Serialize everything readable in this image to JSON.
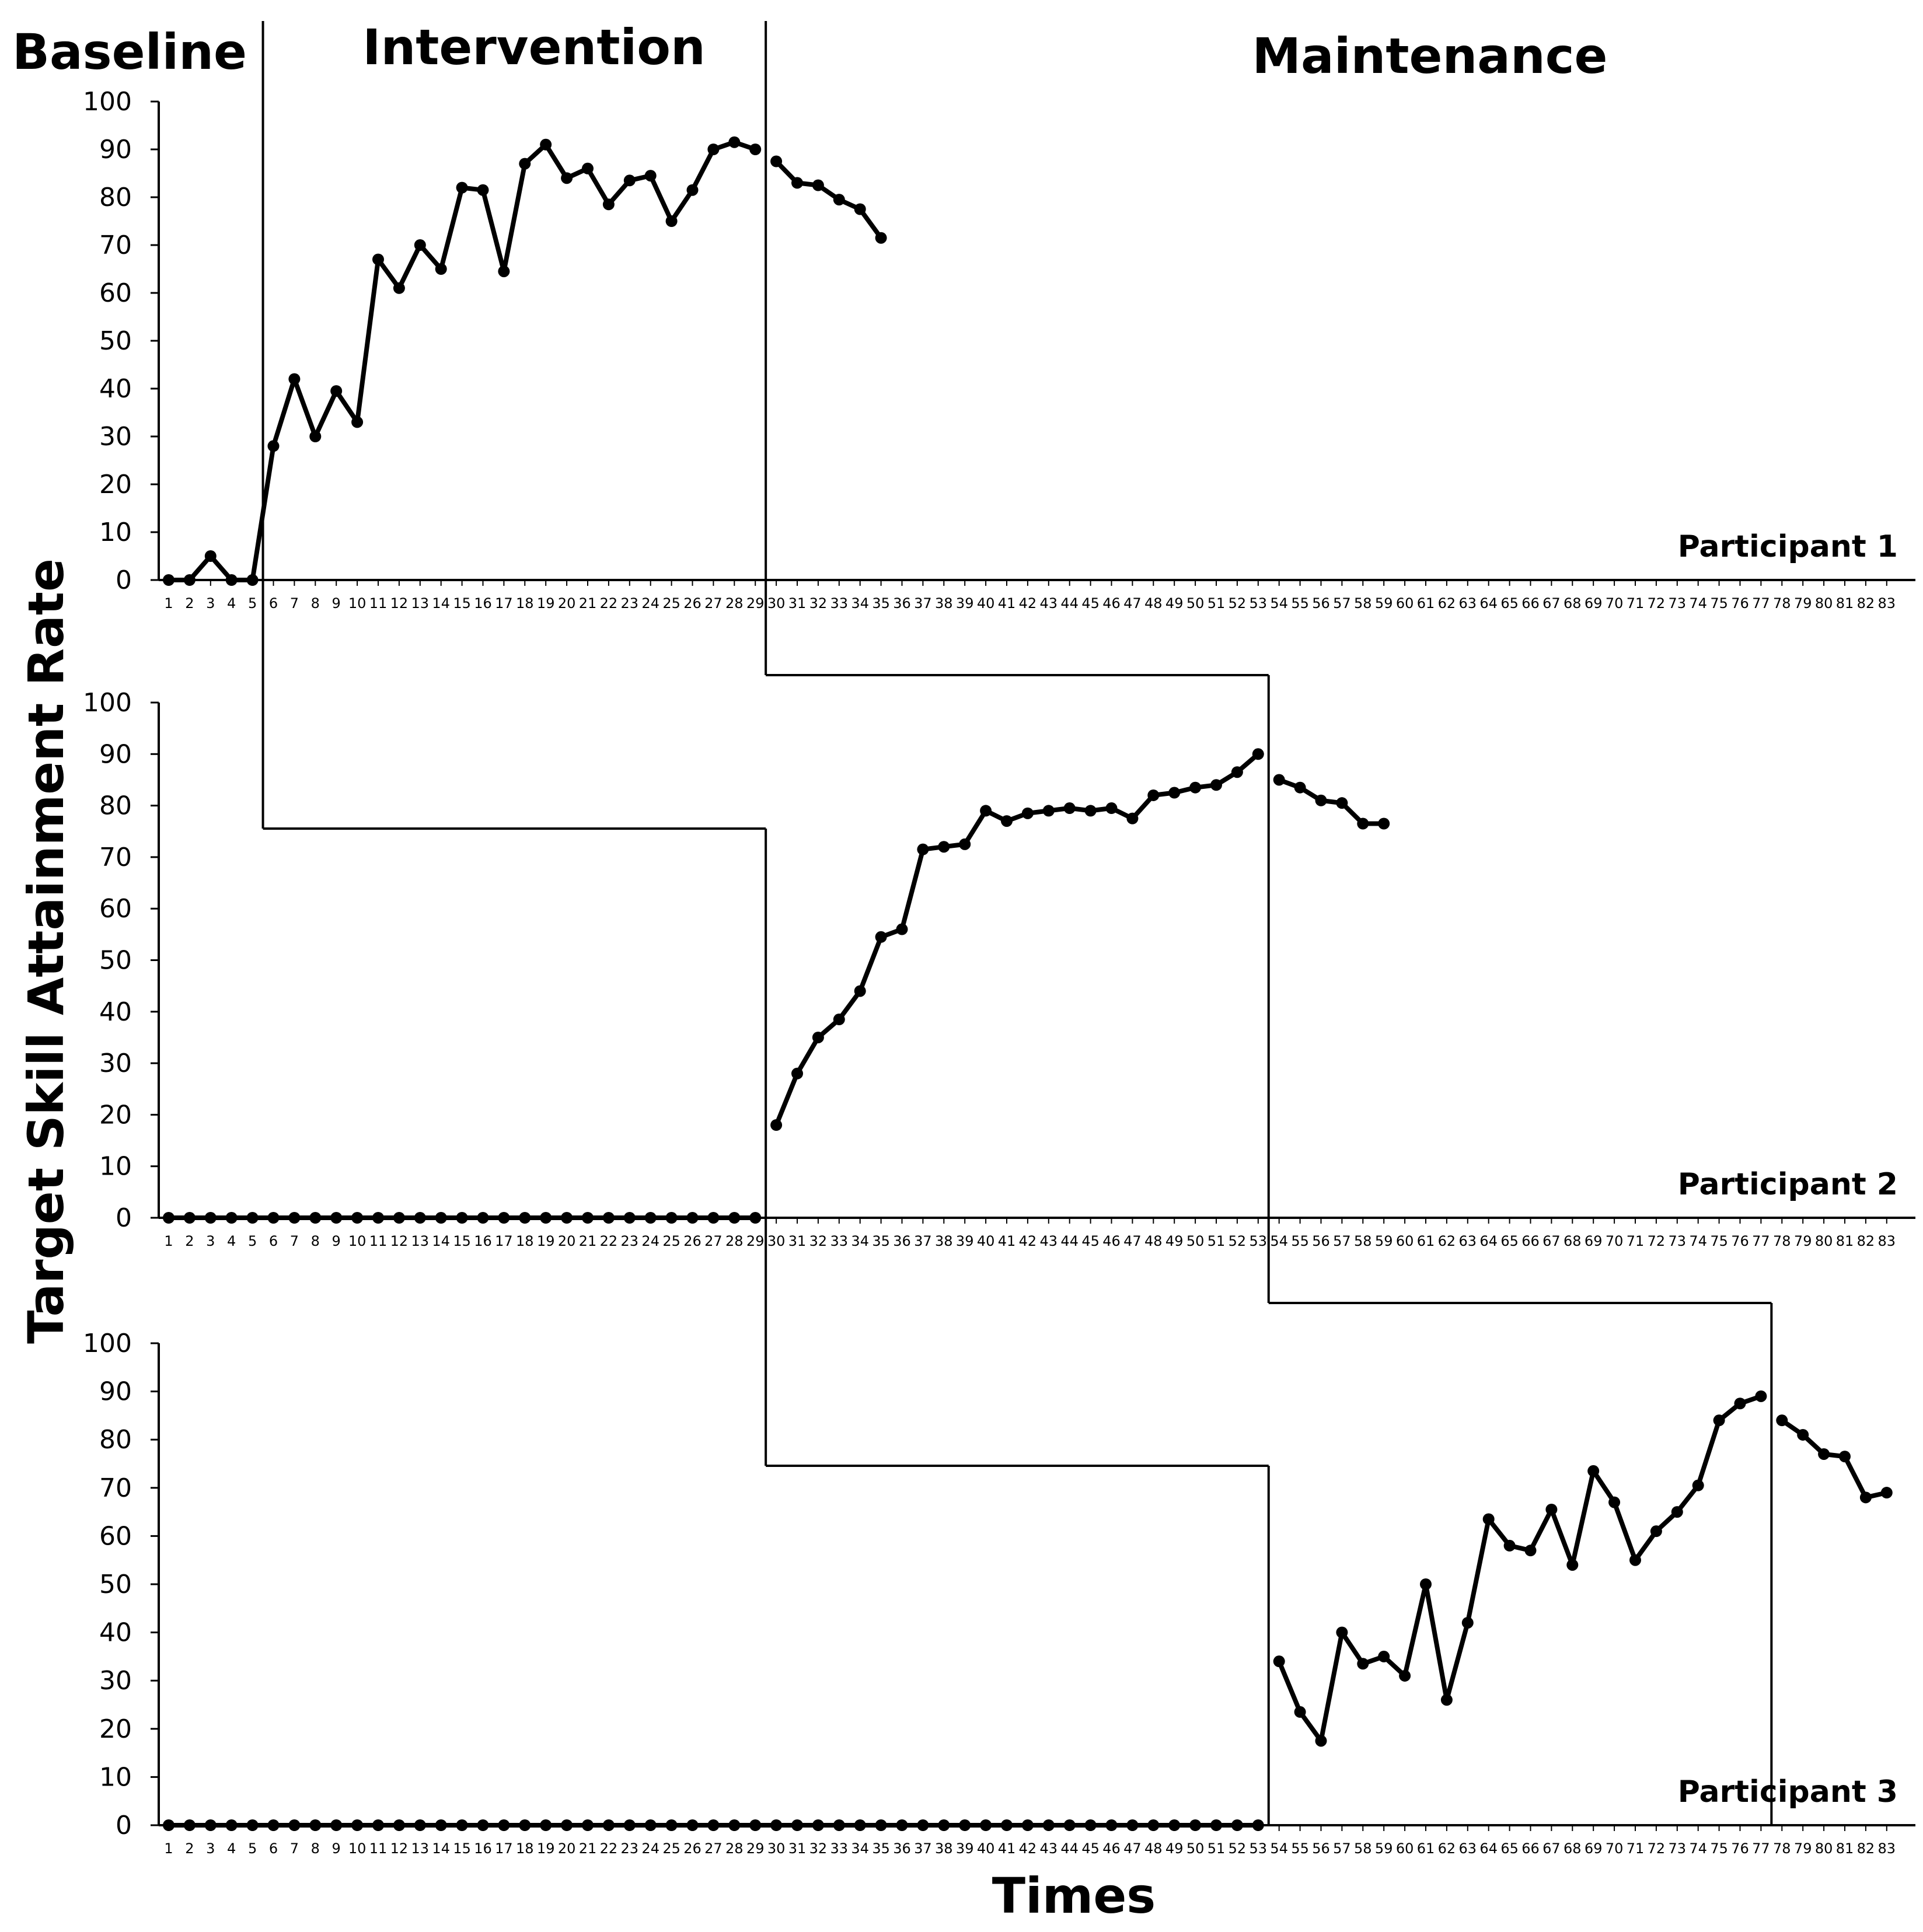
{
  "chart_data": {
    "type": "line",
    "ylabel": "Target Skill Attainment Rate",
    "xlabel": "Times",
    "phases": [
      "Baseline",
      "Intervention",
      "Maintenance"
    ],
    "x_range": [
      1,
      83
    ],
    "ylim": [
      0,
      100
    ],
    "y_ticks": [
      0,
      10,
      20,
      30,
      40,
      50,
      60,
      70,
      80,
      90,
      100
    ],
    "grid": false,
    "legend": "none",
    "line_color": "#000000",
    "panels": [
      {
        "label": "Participant 1",
        "phase_changes": [
          5.5,
          29.5
        ],
        "series": [
          {
            "x": [
              1,
              2,
              3,
              4,
              5,
              6,
              7,
              8,
              9,
              10,
              11,
              12,
              13,
              14,
              15,
              16,
              17,
              18,
              19,
              20,
              21,
              22,
              23,
              24,
              25,
              26,
              27,
              28,
              29
            ],
            "values": [
              0,
              0,
              5,
              0,
              0,
              28,
              42,
              30,
              39.5,
              33,
              67,
              61,
              70,
              65,
              82,
              81.5,
              64.5,
              87,
              91,
              84,
              86,
              78.5,
              83.5,
              84.5,
              75,
              81.5,
              90,
              91.5,
              90
            ]
          },
          {
            "x": [
              30,
              31,
              32,
              33,
              34,
              35
            ],
            "values": [
              87.5,
              83,
              82.5,
              79.5,
              77.5,
              71.5
            ]
          }
        ]
      },
      {
        "label": "Participant 2",
        "phase_changes": [
          29.5,
          53.5
        ],
        "series": [
          {
            "x": [
              1,
              2,
              3,
              4,
              5,
              6,
              7,
              8,
              9,
              10,
              11,
              12,
              13,
              14,
              15,
              16,
              17,
              18,
              19,
              20,
              21,
              22,
              23,
              24,
              25,
              26,
              27,
              28,
              29
            ],
            "values": [
              0,
              0,
              0,
              0,
              0,
              0,
              0,
              0,
              0,
              0,
              0,
              0,
              0,
              0,
              0,
              0,
              0,
              0,
              0,
              0,
              0,
              0,
              0,
              0,
              0,
              0,
              0,
              0,
              0
            ]
          },
          {
            "x": [
              30,
              31,
              32,
              33,
              34,
              35,
              36,
              37,
              38,
              39,
              40,
              41,
              42,
              43,
              44,
              45,
              46,
              47,
              48,
              49,
              50,
              51,
              52,
              53
            ],
            "values": [
              18,
              28,
              35,
              38.5,
              44,
              54.5,
              56,
              71.5,
              72,
              72.5,
              79,
              77,
              78.5,
              79,
              79.5,
              79,
              79.5,
              77.5,
              82,
              82.5,
              83.5,
              84,
              86.5,
              90
            ]
          },
          {
            "x": [
              54,
              55,
              56,
              57,
              58,
              59
            ],
            "values": [
              85,
              83.5,
              81,
              80.5,
              76.5,
              76.5
            ]
          }
        ]
      },
      {
        "label": "Participant 3",
        "phase_changes": [
          53.5,
          77.5
        ],
        "series": [
          {
            "x": [
              1,
              2,
              3,
              4,
              5,
              6,
              7,
              8,
              9,
              10,
              11,
              12,
              13,
              14,
              15,
              16,
              17,
              18,
              19,
              20,
              21,
              22,
              23,
              24,
              25,
              26,
              27,
              28,
              29,
              30,
              31,
              32,
              33,
              34,
              35,
              36,
              37,
              38,
              39,
              40,
              41,
              42,
              43,
              44,
              45,
              46,
              47,
              48,
              49,
              50,
              51,
              52,
              53
            ],
            "values": [
              0,
              0,
              0,
              0,
              0,
              0,
              0,
              0,
              0,
              0,
              0,
              0,
              0,
              0,
              0,
              0,
              0,
              0,
              0,
              0,
              0,
              0,
              0,
              0,
              0,
              0,
              0,
              0,
              0,
              0,
              0,
              0,
              0,
              0,
              0,
              0,
              0,
              0,
              0,
              0,
              0,
              0,
              0,
              0,
              0,
              0,
              0,
              0,
              0,
              0,
              0,
              0,
              0
            ]
          },
          {
            "x": [
              54,
              55,
              56,
              57,
              58,
              59,
              60,
              61,
              62,
              63,
              64,
              65,
              66,
              67,
              68,
              69,
              70,
              71,
              72,
              73,
              74,
              75,
              76,
              77
            ],
            "values": [
              34,
              23.5,
              17.5,
              40,
              33.5,
              35,
              31,
              50,
              26,
              42,
              63.5,
              58,
              57,
              65.5,
              54,
              73.5,
              67,
              55,
              61,
              65,
              70.5,
              84,
              87.5,
              89
            ]
          },
          {
            "x": [
              78,
              79,
              80,
              81,
              82,
              83
            ],
            "values": [
              84,
              81,
              77,
              76.5,
              68,
              69
            ]
          }
        ]
      }
    ]
  }
}
